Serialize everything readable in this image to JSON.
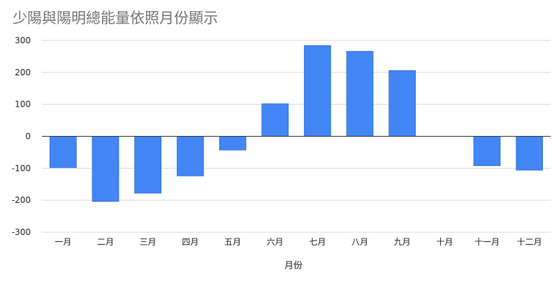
{
  "chart_data": {
    "type": "bar",
    "title": "少陽與陽明總能量依照月份顯示",
    "xlabel": "月份",
    "ylabel": "",
    "categories": [
      "一月",
      "二月",
      "三月",
      "四月",
      "五月",
      "六月",
      "七月",
      "八月",
      "九月",
      "十月",
      "十一月",
      "十二月"
    ],
    "values": [
      -98,
      -204,
      -178,
      -124,
      -43,
      102,
      284,
      266,
      206,
      0,
      -92,
      -106
    ],
    "ylim": [
      -300,
      300
    ],
    "yticks": [
      "300",
      "200",
      "100",
      "0",
      "-100",
      "-200",
      "-300"
    ],
    "grid": true,
    "legend": "none",
    "colors": {
      "bar": "#4285f4",
      "bar_stroke": "#3a76d8",
      "grid": "#d9d9d9",
      "zero_line": "#333333"
    }
  }
}
